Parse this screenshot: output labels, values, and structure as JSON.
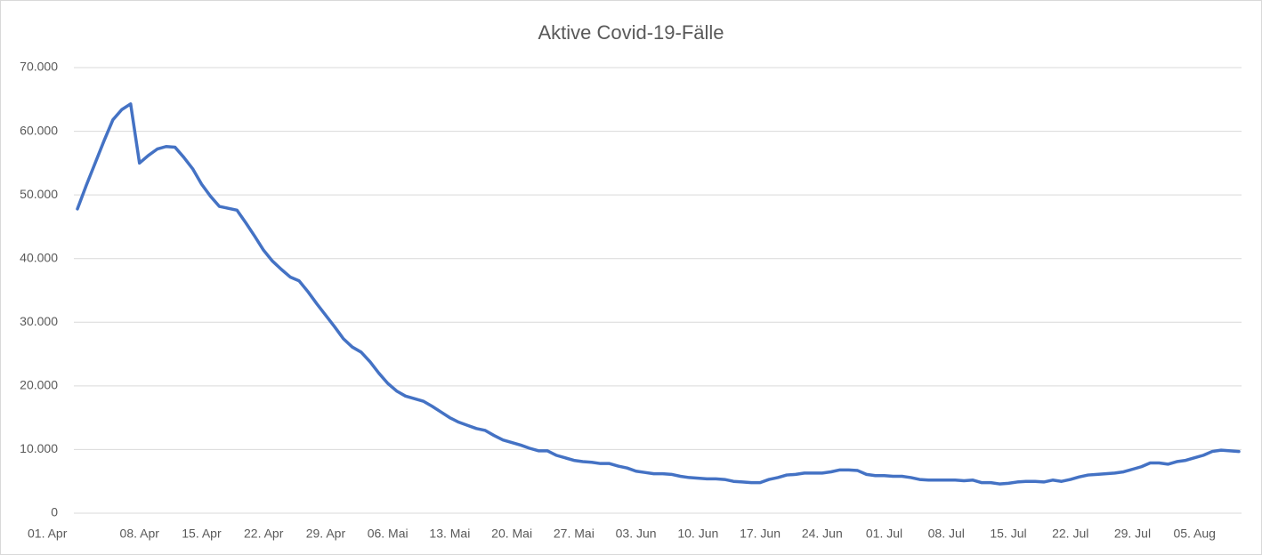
{
  "chart_data": {
    "type": "line",
    "title": "Aktive Covid-19-Fälle",
    "color": "#4472c4",
    "grid": true,
    "categories": [
      "01. Apr",
      null,
      null,
      null,
      null,
      null,
      null,
      "08. Apr",
      null,
      null,
      null,
      null,
      null,
      null,
      "15. Apr",
      null,
      null,
      null,
      null,
      null,
      null,
      "22. Apr",
      null,
      null,
      null,
      null,
      null,
      null,
      "29. Apr",
      null,
      null,
      null,
      null,
      null,
      null,
      "06. Mai",
      null,
      null,
      null,
      null,
      null,
      null,
      "13. Mai",
      null,
      null,
      null,
      null,
      null,
      null,
      "20. Mai",
      null,
      null,
      null,
      null,
      null,
      null,
      "27. Mai",
      null,
      null,
      null,
      null,
      null,
      null,
      "03. Jun",
      null,
      null,
      null,
      null,
      null,
      null,
      "10. Jun",
      null,
      null,
      null,
      null,
      null,
      null,
      "17. Jun",
      null,
      null,
      null,
      null,
      null,
      null,
      "24. Jun",
      null,
      null,
      null,
      null,
      null,
      null,
      "01. Jul",
      null,
      null,
      null,
      null,
      null,
      null,
      "08. Jul",
      null,
      null,
      null,
      null,
      null,
      null,
      "15. Jul",
      null,
      null,
      null,
      null,
      null,
      null,
      "22. Jul",
      null,
      null,
      null,
      null,
      null,
      null,
      "29. Jul",
      null,
      null,
      null,
      null,
      null,
      null,
      "05. Aug",
      null,
      null,
      null,
      null,
      null
    ],
    "values": [
      47800,
      51500,
      55000,
      58500,
      61800,
      63400,
      64300,
      55000,
      56200,
      57200,
      57600,
      57500,
      55900,
      54100,
      51700,
      49800,
      48200,
      47900,
      47600,
      45600,
      43500,
      41300,
      39600,
      38300,
      37100,
      36500,
      34800,
      32900,
      31100,
      29300,
      27400,
      26100,
      25300,
      23800,
      22000,
      20400,
      19200,
      18400,
      18000,
      17600,
      16800,
      15900,
      15000,
      14300,
      13800,
      13300,
      13000,
      12200,
      11500,
      11100,
      10700,
      10200,
      9800,
      9800,
      9100,
      8700,
      8300,
      8100,
      8000,
      7800,
      7800,
      7400,
      7100,
      6600,
      6400,
      6200,
      6200,
      6100,
      5800,
      5600,
      5500,
      5400,
      5400,
      5300,
      5000,
      4900,
      4800,
      4800,
      5300,
      5600,
      6000,
      6100,
      6300,
      6300,
      6300,
      6500,
      6800,
      6800,
      6700,
      6100,
      5900,
      5900,
      5800,
      5800,
      5600,
      5300,
      5200,
      5200,
      5200,
      5200,
      5100,
      5200,
      4800,
      4800,
      4600,
      4700,
      4900,
      5000,
      5000,
      4900,
      5200,
      5000,
      5300,
      5700,
      6000,
      6100,
      6200,
      6300,
      6500,
      6900,
      7300,
      7900,
      7900,
      7700,
      8100,
      8300,
      8700,
      9100,
      9700,
      9900,
      9800,
      9700
    ],
    "ylim": [
      0,
      70000
    ],
    "yticks": [
      0,
      {
        "value": 10000,
        "label": "10.000"
      },
      {
        "value": 20000,
        "label": "20.000"
      },
      {
        "value": 30000,
        "label": "30.000"
      },
      {
        "value": 40000,
        "label": "40.000"
      },
      {
        "value": 50000,
        "label": "50.000"
      },
      {
        "value": 60000,
        "label": "60.000"
      },
      {
        "value": 70000,
        "label": "70.000"
      }
    ]
  }
}
